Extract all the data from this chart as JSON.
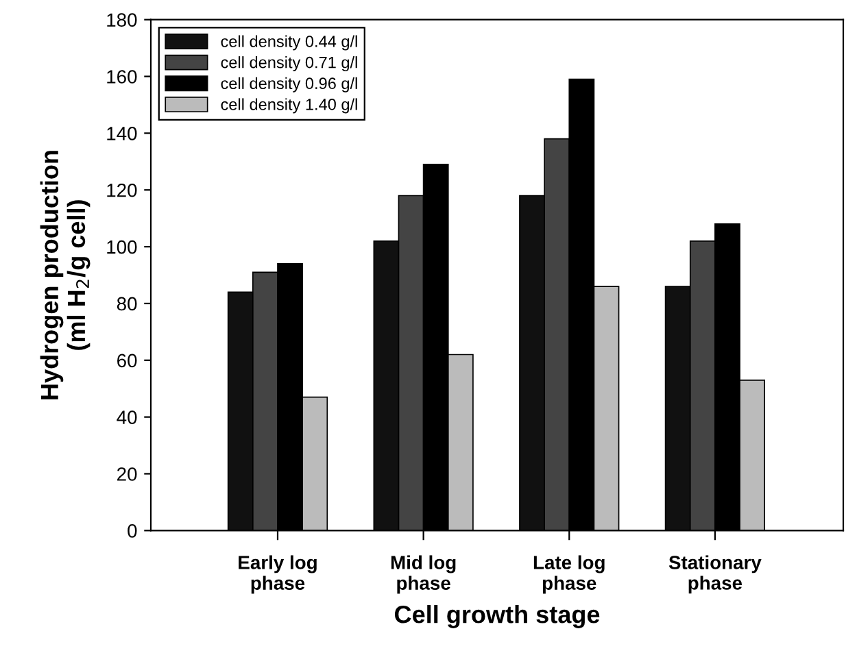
{
  "chart_data": {
    "type": "bar",
    "xlabel": "Cell growth stage",
    "ylabel": "Hydrogen production\n(ml H$_{2}$/g cell)",
    "categories": [
      "Early log\nphase",
      "Mid log\nphase",
      "Late log\nphase",
      "Stationary\nphase"
    ],
    "series": [
      {
        "name": "cell density 0.44 g/l",
        "color": "#111111",
        "values": [
          84,
          102,
          118,
          86
        ]
      },
      {
        "name": "cell density 0.71 g/l",
        "color": "#444444",
        "values": [
          91,
          118,
          138,
          102
        ]
      },
      {
        "name": "cell density 0.96 g/l",
        "color": "#000000",
        "values": [
          94,
          129,
          159,
          108
        ]
      },
      {
        "name": "cell density 1.40 g/l",
        "color": "#bbbbbb",
        "values": [
          47,
          62,
          86,
          53
        ]
      }
    ],
    "ylim": [
      0,
      180
    ],
    "yticks": [
      0,
      20,
      40,
      60,
      80,
      100,
      120,
      140,
      160,
      180
    ],
    "grid": false,
    "legend": "top left"
  }
}
